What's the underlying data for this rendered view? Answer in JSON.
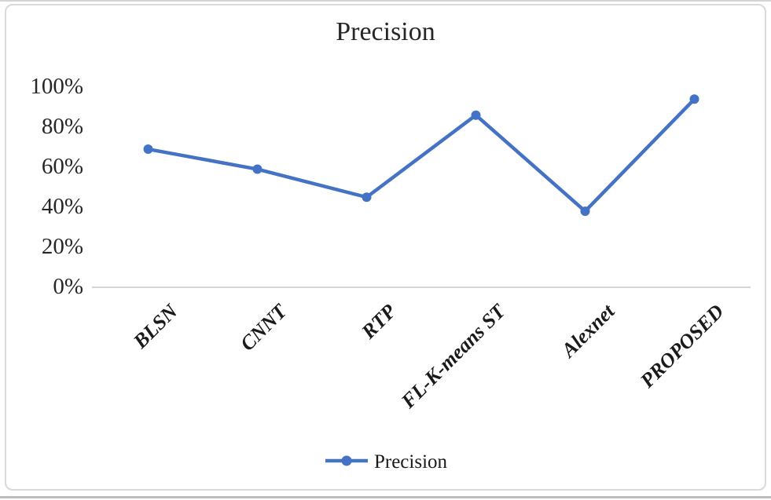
{
  "chart_title": "Precision",
  "legend": {
    "label": "Precision"
  },
  "chart_data": {
    "type": "line",
    "title": "Precision",
    "categories": [
      "BLSN",
      "CNNT",
      "RTP",
      "FL-K-means ST",
      "Alexnet",
      "PROPOSED"
    ],
    "series": [
      {
        "name": "Precision",
        "color": "#4472C4",
        "values": [
          69,
          59,
          45,
          86,
          38,
          94
        ]
      }
    ],
    "ylim": [
      0,
      100
    ],
    "yticks": [
      0,
      20,
      40,
      60,
      80,
      100
    ],
    "ytick_suffix": "%",
    "xlabel": "",
    "ylabel": "",
    "grid": false,
    "legend_position": "bottom",
    "x_label_rotation_deg": 45,
    "marker": "circle"
  },
  "colors": {
    "series_blue": "#4472C4",
    "axis_line": "#d6d6d6",
    "text": "#262626",
    "frame_border": "#d9d9d9",
    "background": "#ffffff"
  }
}
